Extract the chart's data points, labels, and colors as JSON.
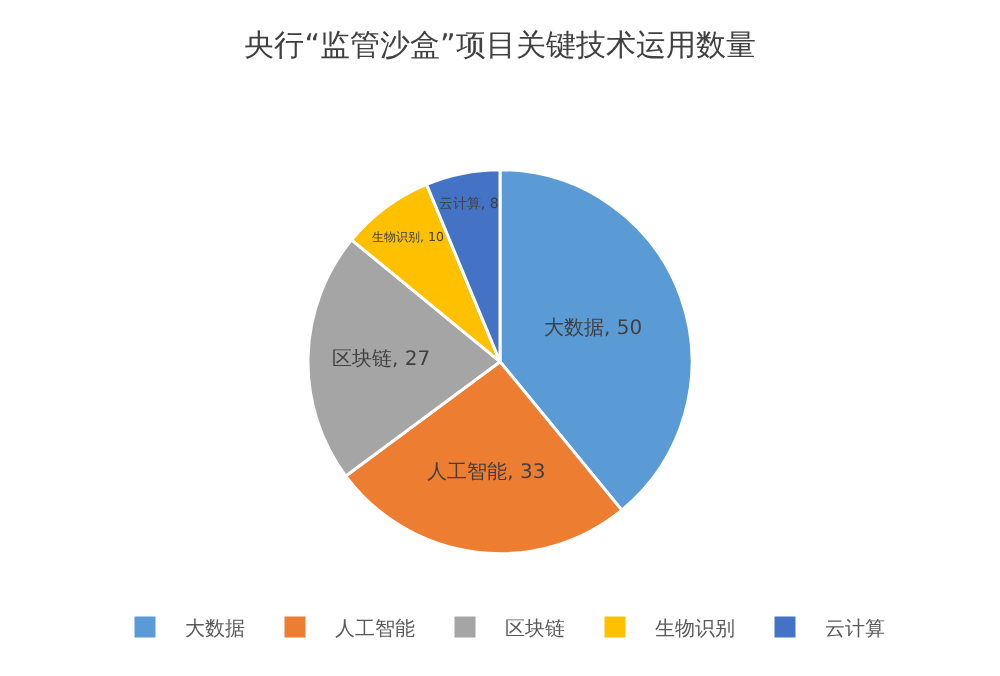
{
  "chart_data": {
    "type": "pie",
    "title": "央行“监管沙盒”项目关键技术运用数量",
    "categories": [
      "大数据",
      "人工智能",
      "区块链",
      "生物识别",
      "云计算"
    ],
    "values": [
      50,
      33,
      27,
      10,
      8
    ],
    "value_labels": [
      "大数据, 50",
      "人工智能, 33",
      "区块链, 27",
      "生物识别, 10",
      "云计算, 8"
    ],
    "colors": [
      "#5b9bd5",
      "#ed7d31",
      "#a5a5a5",
      "#ffc000",
      "#4472c4"
    ],
    "legend": "bottom"
  }
}
